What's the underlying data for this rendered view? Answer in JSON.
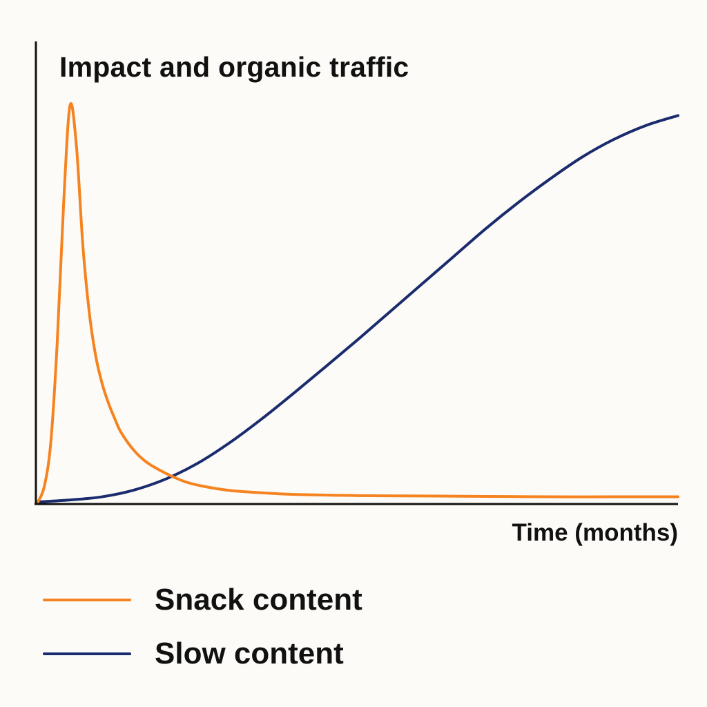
{
  "chart_data": {
    "type": "line",
    "title": "Impact and organic traffic",
    "xlabel": "Time (months)",
    "ylabel": "",
    "grid": false,
    "legend_placement": "bottom-left",
    "xlim": [
      0,
      100
    ],
    "ylim": [
      0,
      100
    ],
    "series": [
      {
        "name": "Snack content",
        "color": "#f5831f",
        "x": [
          0,
          1,
          2,
          3,
          4,
          5,
          6,
          7,
          8,
          9,
          10,
          11,
          12,
          13,
          15,
          17,
          20,
          23,
          26,
          30,
          35,
          40,
          50,
          60,
          70,
          80,
          90,
          100
        ],
        "y": [
          0,
          4,
          15,
          40,
          75,
          100,
          90,
          65,
          48,
          37,
          30,
          25,
          21,
          17.5,
          13,
          10,
          7.2,
          5.1,
          3.9,
          2.9,
          2.3,
          1.9,
          1.6,
          1.5,
          1.4,
          1.3,
          1.3,
          1.3
        ]
      },
      {
        "name": "Slow content",
        "color": "#1a2b6e",
        "x": [
          0,
          5,
          10,
          15,
          20,
          25,
          30,
          35,
          40,
          45,
          50,
          55,
          60,
          65,
          70,
          75,
          80,
          85,
          90,
          95,
          100
        ],
        "y": [
          0,
          0.5,
          1.3,
          3,
          5.8,
          9.8,
          15,
          21,
          27.5,
          34.2,
          41,
          48,
          55,
          62,
          69,
          75.5,
          81.5,
          87,
          91.5,
          95,
          97.5
        ]
      }
    ]
  }
}
